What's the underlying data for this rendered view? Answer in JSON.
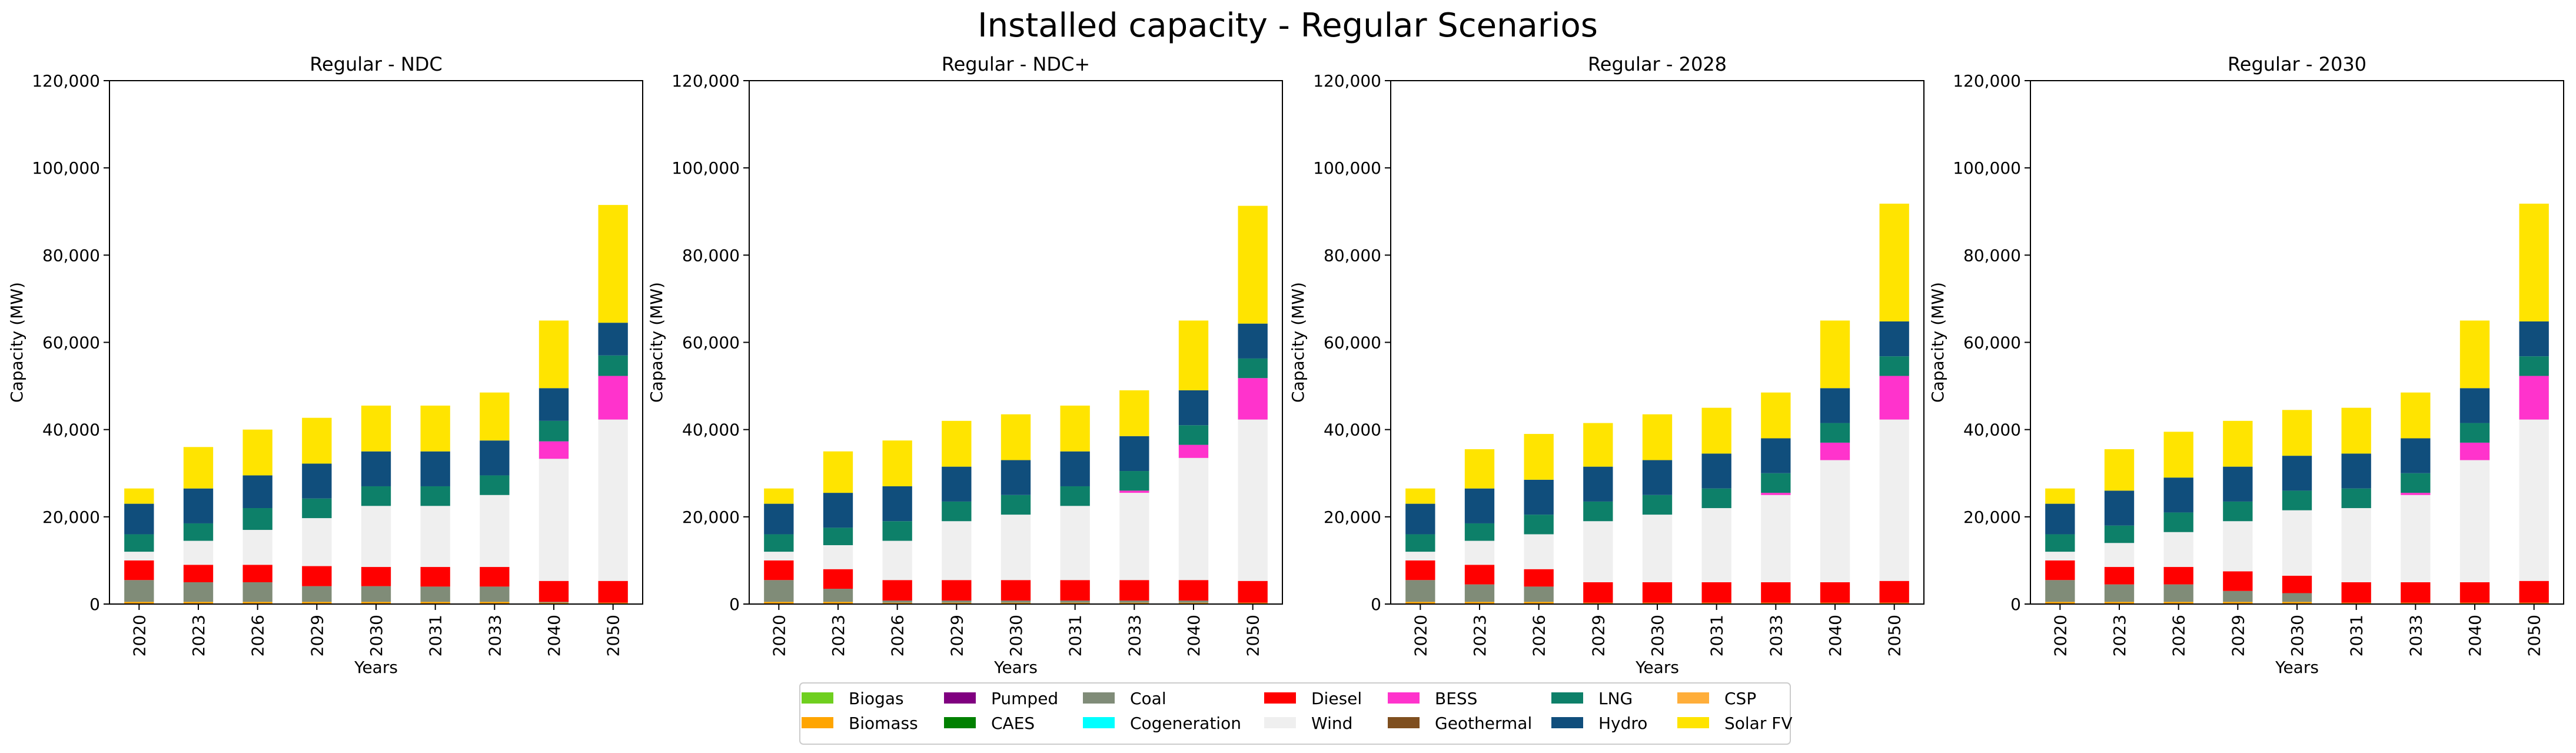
{
  "title": "Installed capacity  - Regular Scenarios",
  "chart_data": {
    "type": "bar",
    "stacked": true,
    "categories": [
      "2020",
      "2023",
      "2026",
      "2029",
      "2030",
      "2031",
      "2033",
      "2040",
      "2050"
    ],
    "xlabel": "Years",
    "ylabel": "Capacity (MW)",
    "ylim": [
      0,
      120000
    ],
    "yticks": [
      0,
      20000,
      40000,
      60000,
      80000,
      100000,
      120000
    ],
    "ytick_labels": [
      "0",
      "20,000",
      "40,000",
      "60,000",
      "80,000",
      "100,000",
      "120,000"
    ],
    "technologies": [
      {
        "name": "Biogas",
        "color": "#6fcf1f"
      },
      {
        "name": "Biomass",
        "color": "#ffa500"
      },
      {
        "name": "Pumped",
        "color": "#800080"
      },
      {
        "name": "CAES",
        "color": "#008000"
      },
      {
        "name": "Coal",
        "color": "#808c78"
      },
      {
        "name": "Cogeneration",
        "color": "#00ffff"
      },
      {
        "name": "Diesel",
        "color": "#ff0000"
      },
      {
        "name": "Wind",
        "color": "#efefef"
      },
      {
        "name": "BESS",
        "color": "#ff33cc"
      },
      {
        "name": "Geothermal",
        "color": "#7f4f1f"
      },
      {
        "name": "LNG",
        "color": "#0d8069"
      },
      {
        "name": "Hydro",
        "color": "#104e7c"
      },
      {
        "name": "CSP",
        "color": "#ffae3a"
      },
      {
        "name": "Solar FV",
        "color": "#ffe400"
      }
    ],
    "panels": [
      {
        "title": "Regular - NDC",
        "series": [
          {
            "name": "Biogas",
            "values": [
              0,
              0,
              0,
              0,
              0,
              0,
              0,
              0,
              0
            ]
          },
          {
            "name": "Biomass",
            "values": [
              500,
              500,
              500,
              500,
              500,
              500,
              500,
              300,
              300
            ]
          },
          {
            "name": "Pumped",
            "values": [
              0,
              0,
              0,
              0,
              0,
              0,
              0,
              0,
              0
            ]
          },
          {
            "name": "CAES",
            "values": [
              0,
              0,
              0,
              0,
              0,
              0,
              0,
              0,
              0
            ]
          },
          {
            "name": "Coal",
            "values": [
              5000,
              4500,
              4500,
              3600,
              3600,
              3500,
              3500,
              200,
              0
            ]
          },
          {
            "name": "Cogeneration",
            "values": [
              0,
              0,
              0,
              0,
              0,
              0,
              0,
              0,
              0
            ]
          },
          {
            "name": "Diesel",
            "values": [
              4500,
              4000,
              4000,
              4600,
              4400,
              4500,
              4500,
              4800,
              5000
            ]
          },
          {
            "name": "Wind",
            "values": [
              2000,
              5500,
              8000,
              11000,
              14000,
              14000,
              16500,
              28000,
              37000
            ]
          },
          {
            "name": "BESS",
            "values": [
              0,
              0,
              0,
              0,
              0,
              0,
              0,
              4000,
              10000
            ]
          },
          {
            "name": "Geothermal",
            "values": [
              0,
              0,
              0,
              0,
              0,
              0,
              0,
              0,
              0
            ]
          },
          {
            "name": "LNG",
            "values": [
              4000,
              4000,
              5000,
              4500,
              4500,
              4500,
              4500,
              4700,
              4700
            ]
          },
          {
            "name": "Hydro",
            "values": [
              7000,
              8000,
              7500,
              8000,
              8000,
              8000,
              8000,
              7500,
              7500
            ]
          },
          {
            "name": "CSP",
            "values": [
              0,
              0,
              0,
              0,
              0,
              0,
              0,
              0,
              0
            ]
          },
          {
            "name": "Solar FV",
            "values": [
              3500,
              9500,
              10500,
              10500,
              10500,
              10500,
              11000,
              15500,
              27000
            ]
          }
        ]
      },
      {
        "title": "Regular - NDC+",
        "series": [
          {
            "name": "Biogas",
            "values": [
              0,
              0,
              0,
              0,
              0,
              0,
              0,
              0,
              0
            ]
          },
          {
            "name": "Biomass",
            "values": [
              500,
              500,
              300,
              300,
              300,
              300,
              300,
              300,
              300
            ]
          },
          {
            "name": "Pumped",
            "values": [
              0,
              0,
              0,
              0,
              0,
              0,
              0,
              0,
              0
            ]
          },
          {
            "name": "CAES",
            "values": [
              0,
              0,
              0,
              0,
              0,
              0,
              0,
              0,
              0
            ]
          },
          {
            "name": "Coal",
            "values": [
              5000,
              3000,
              500,
              500,
              500,
              500,
              500,
              500,
              0
            ]
          },
          {
            "name": "Cogeneration",
            "values": [
              0,
              0,
              0,
              0,
              0,
              0,
              0,
              0,
              0
            ]
          },
          {
            "name": "Diesel",
            "values": [
              4500,
              4500,
              4700,
              4700,
              4700,
              4700,
              4700,
              4700,
              5000
            ]
          },
          {
            "name": "Wind",
            "values": [
              2000,
              5500,
              9000,
              13500,
              15000,
              17000,
              20000,
              28000,
              37000
            ]
          },
          {
            "name": "BESS",
            "values": [
              0,
              0,
              0,
              0,
              0,
              0,
              500,
              3000,
              9500
            ]
          },
          {
            "name": "Geothermal",
            "values": [
              0,
              0,
              0,
              0,
              0,
              0,
              0,
              0,
              0
            ]
          },
          {
            "name": "LNG",
            "values": [
              4000,
              4000,
              4500,
              4500,
              4500,
              4500,
              4500,
              4500,
              4500
            ]
          },
          {
            "name": "Hydro",
            "values": [
              7000,
              8000,
              8000,
              8000,
              8000,
              8000,
              8000,
              8000,
              8000
            ]
          },
          {
            "name": "CSP",
            "values": [
              0,
              0,
              0,
              0,
              0,
              0,
              0,
              0,
              0
            ]
          },
          {
            "name": "Solar FV",
            "values": [
              3500,
              9500,
              10500,
              10500,
              10500,
              10500,
              10500,
              16000,
              27000
            ]
          }
        ]
      },
      {
        "title": "Regular - 2028",
        "series": [
          {
            "name": "Biogas",
            "values": [
              0,
              0,
              0,
              0,
              0,
              0,
              0,
              0,
              0
            ]
          },
          {
            "name": "Biomass",
            "values": [
              500,
              500,
              500,
              300,
              300,
              300,
              300,
              300,
              300
            ]
          },
          {
            "name": "Pumped",
            "values": [
              0,
              0,
              0,
              0,
              0,
              0,
              0,
              0,
              0
            ]
          },
          {
            "name": "CAES",
            "values": [
              0,
              0,
              0,
              0,
              0,
              0,
              0,
              0,
              0
            ]
          },
          {
            "name": "Coal",
            "values": [
              5000,
              4000,
              3500,
              0,
              0,
              0,
              0,
              0,
              0
            ]
          },
          {
            "name": "Cogeneration",
            "values": [
              0,
              0,
              0,
              0,
              0,
              0,
              0,
              0,
              0
            ]
          },
          {
            "name": "Diesel",
            "values": [
              4500,
              4500,
              4000,
              4700,
              4700,
              4700,
              4700,
              4700,
              5000
            ]
          },
          {
            "name": "Wind",
            "values": [
              2000,
              5500,
              8000,
              14000,
              15500,
              17000,
              20000,
              28000,
              37000
            ]
          },
          {
            "name": "BESS",
            "values": [
              0,
              0,
              0,
              0,
              0,
              0,
              500,
              4000,
              10000
            ]
          },
          {
            "name": "Geothermal",
            "values": [
              0,
              0,
              0,
              0,
              0,
              0,
              0,
              0,
              0
            ]
          },
          {
            "name": "LNG",
            "values": [
              4000,
              4000,
              4500,
              4500,
              4500,
              4500,
              4500,
              4500,
              4500
            ]
          },
          {
            "name": "Hydro",
            "values": [
              7000,
              8000,
              8000,
              8000,
              8000,
              8000,
              8000,
              8000,
              8000
            ]
          },
          {
            "name": "CSP",
            "values": [
              0,
              0,
              0,
              0,
              0,
              0,
              0,
              0,
              0
            ]
          },
          {
            "name": "Solar FV",
            "values": [
              3500,
              9000,
              10500,
              10000,
              10500,
              10500,
              10500,
              15500,
              27000
            ]
          }
        ]
      },
      {
        "title": "Regular - 2030",
        "series": [
          {
            "name": "Biogas",
            "values": [
              0,
              0,
              0,
              0,
              0,
              0,
              0,
              0,
              0
            ]
          },
          {
            "name": "Biomass",
            "values": [
              500,
              500,
              500,
              500,
              500,
              300,
              300,
              300,
              300
            ]
          },
          {
            "name": "Pumped",
            "values": [
              0,
              0,
              0,
              0,
              0,
              0,
              0,
              0,
              0
            ]
          },
          {
            "name": "CAES",
            "values": [
              0,
              0,
              0,
              0,
              0,
              0,
              0,
              0,
              0
            ]
          },
          {
            "name": "Coal",
            "values": [
              5000,
              4000,
              4000,
              2500,
              2000,
              0,
              0,
              0,
              0
            ]
          },
          {
            "name": "Cogeneration",
            "values": [
              0,
              0,
              0,
              0,
              0,
              0,
              0,
              0,
              0
            ]
          },
          {
            "name": "Diesel",
            "values": [
              4500,
              4000,
              4000,
              4500,
              4000,
              4700,
              4700,
              4700,
              5000
            ]
          },
          {
            "name": "Wind",
            "values": [
              2000,
              5500,
              8000,
              11500,
              15000,
              17000,
              20000,
              28000,
              37000
            ]
          },
          {
            "name": "BESS",
            "values": [
              0,
              0,
              0,
              0,
              0,
              0,
              500,
              4000,
              10000
            ]
          },
          {
            "name": "Geothermal",
            "values": [
              0,
              0,
              0,
              0,
              0,
              0,
              0,
              0,
              0
            ]
          },
          {
            "name": "LNG",
            "values": [
              4000,
              4000,
              4500,
              4500,
              4500,
              4500,
              4500,
              4500,
              4500
            ]
          },
          {
            "name": "Hydro",
            "values": [
              7000,
              8000,
              8000,
              8000,
              8000,
              8000,
              8000,
              8000,
              8000
            ]
          },
          {
            "name": "CSP",
            "values": [
              0,
              0,
              0,
              0,
              0,
              0,
              0,
              0,
              0
            ]
          },
          {
            "name": "Solar FV",
            "values": [
              3500,
              9500,
              10500,
              10500,
              10500,
              10500,
              10500,
              15500,
              27000
            ]
          }
        ]
      }
    ]
  }
}
